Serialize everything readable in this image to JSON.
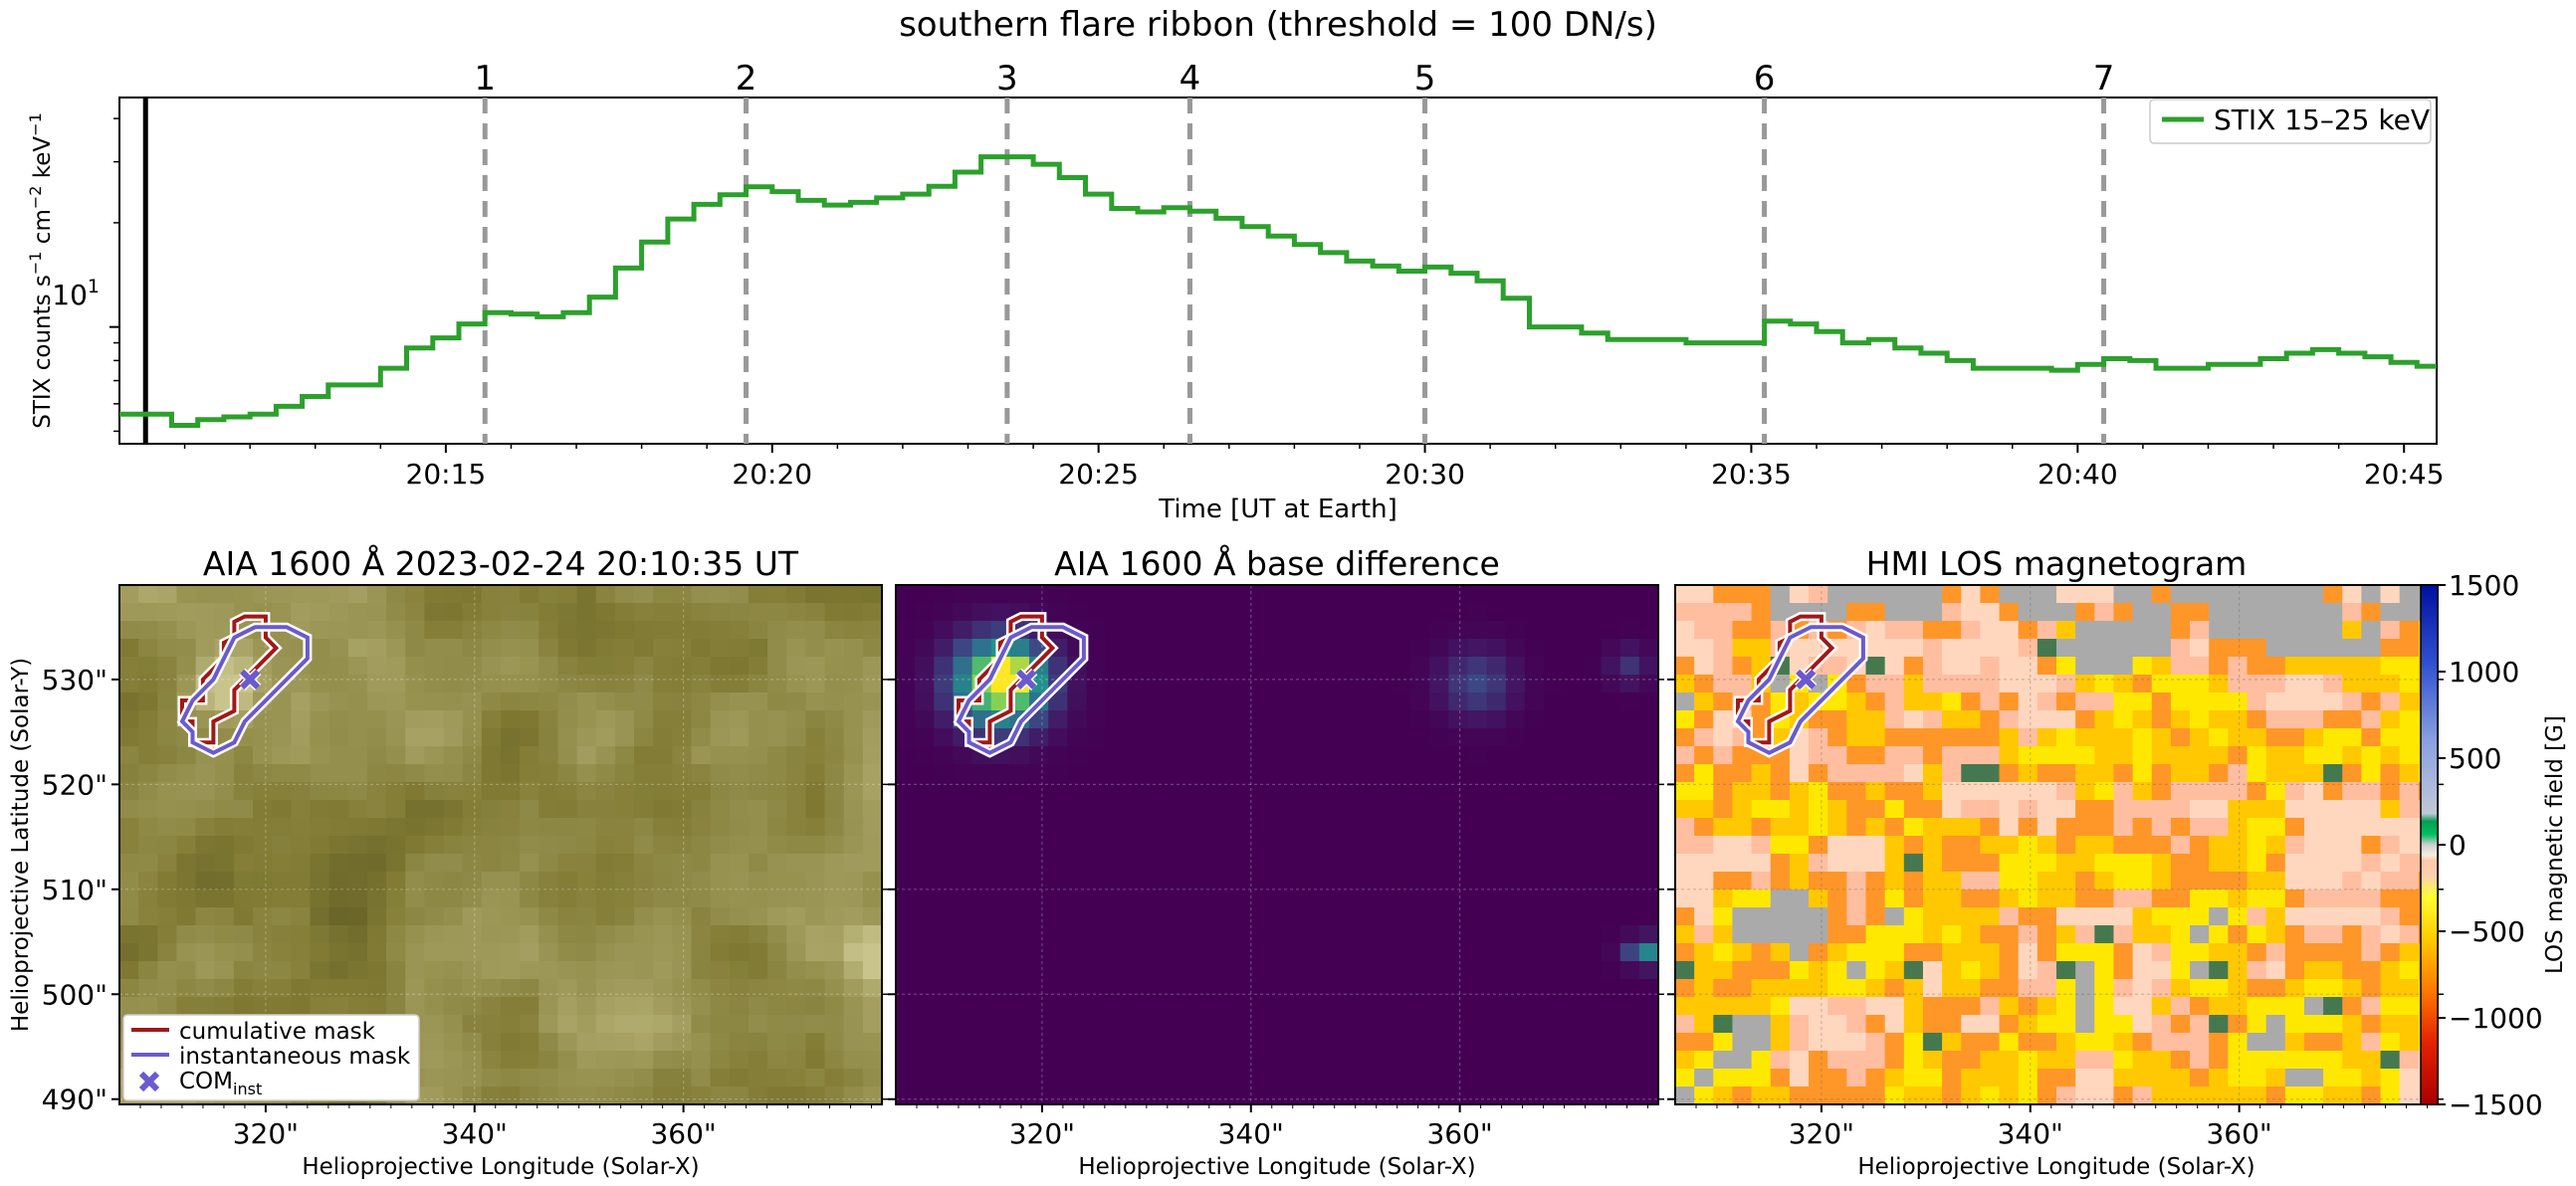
{
  "figure_title": "southern flare ribbon (threshold = 100 DN/s)",
  "colors": {
    "stix_line": "#2ca02c",
    "event_lines": "#999999",
    "start_line": "#000000",
    "cumulative_mask": "#a01818",
    "instantaneous_mask": "#6a5acd",
    "com_marker": "#6a5acd"
  },
  "chart_data": [
    {
      "type": "line",
      "panel": "timeseries",
      "drawstyle": "steps-post",
      "yscale": "log",
      "xlabel": "Time [UT at Earth]",
      "ylabel": "STIX counts s",
      "ylabel_sup1": "−1",
      "ylabel_mid": " cm",
      "ylabel_sup2": "−2",
      "ylabel_mid2": " keV",
      "ylabel_sup3": "−1",
      "xlim_minutes": [
        10.0,
        45.5
      ],
      "ylim": [
        4.6,
        46
      ],
      "x_tick_labels": [
        "20:15",
        "20:20",
        "20:25",
        "20:30",
        "20:35",
        "20:40",
        "20:45"
      ],
      "x_tick_minutes": [
        15,
        20,
        25,
        30,
        35,
        40,
        45
      ],
      "y_tick_base": "10",
      "y_tick_exp": "1",
      "y_tick_value": 10,
      "legend": [
        "STIX 15–25 keV"
      ],
      "legend_position": "upper-right",
      "start_marker_minute": 10.4,
      "event_markers": [
        {
          "label": "1",
          "minute": 15.6
        },
        {
          "label": "2",
          "minute": 19.6
        },
        {
          "label": "3",
          "minute": 23.6
        },
        {
          "label": "4",
          "minute": 26.4
        },
        {
          "label": "5",
          "minute": 30.0
        },
        {
          "label": "6",
          "minute": 35.2
        },
        {
          "label": "7",
          "minute": 40.4
        }
      ],
      "series": [
        {
          "name": "STIX 15–25 keV",
          "x_minutes": [
            10.0,
            10.4,
            10.8,
            11.2,
            11.6,
            12.0,
            12.4,
            12.8,
            13.2,
            13.6,
            14.0,
            14.4,
            14.8,
            15.2,
            15.6,
            16.0,
            16.4,
            16.8,
            17.2,
            17.6,
            18.0,
            18.4,
            18.8,
            19.2,
            19.6,
            20.0,
            20.4,
            20.8,
            21.2,
            21.6,
            22.0,
            22.4,
            22.8,
            23.2,
            23.6,
            24.0,
            24.4,
            24.8,
            25.2,
            25.6,
            26.0,
            26.4,
            26.8,
            27.2,
            27.6,
            28.0,
            28.4,
            28.8,
            29.2,
            29.6,
            30.0,
            30.4,
            30.8,
            31.2,
            31.6,
            32.0,
            32.4,
            32.8,
            33.2,
            33.6,
            34.0,
            34.4,
            34.8,
            35.2,
            35.6,
            36.0,
            36.4,
            36.8,
            37.2,
            37.6,
            38.0,
            38.4,
            38.8,
            39.2,
            39.6,
            40.0,
            40.4,
            40.8,
            41.2,
            41.6,
            42.0,
            42.4,
            42.8,
            43.2,
            43.6,
            44.0,
            44.4,
            44.8,
            45.2
          ],
          "values": [
            5.6,
            5.6,
            5.2,
            5.4,
            5.5,
            5.6,
            5.9,
            6.3,
            6.8,
            6.8,
            7.6,
            8.7,
            9.3,
            10.2,
            11.0,
            10.9,
            10.7,
            11.0,
            12.2,
            14.8,
            17.6,
            20.5,
            22.6,
            24.1,
            25.4,
            24.6,
            23.2,
            22.5,
            22.9,
            23.6,
            24.2,
            25.5,
            28.0,
            31.0,
            31.0,
            29.5,
            27.0,
            24.2,
            22.0,
            21.5,
            22.1,
            21.6,
            20.6,
            19.5,
            18.3,
            17.3,
            16.4,
            15.5,
            15.0,
            14.5,
            14.9,
            14.3,
            13.6,
            12.1,
            10.0,
            10.0,
            9.6,
            9.2,
            9.2,
            9.2,
            9.0,
            9.0,
            9.0,
            10.4,
            10.2,
            9.7,
            9.0,
            9.2,
            8.7,
            8.4,
            8.0,
            7.6,
            7.6,
            7.6,
            7.5,
            7.8,
            8.1,
            8.0,
            7.6,
            7.6,
            7.8,
            7.8,
            8.1,
            8.4,
            8.6,
            8.4,
            8.2,
            7.9,
            7.7
          ]
        }
      ]
    },
    {
      "type": "heatmap",
      "panel": "aia",
      "title": "AIA 1600 Å 2023-02-24 20:10:35 UT",
      "xlabel": "Helioprojective Longitude (Solar-X)",
      "ylabel": "Helioprojective Latitude (Solar-Y)",
      "x_tick_labels": [
        "320\"",
        "340\"",
        "360\""
      ],
      "x_tick_values": [
        320,
        340,
        360
      ],
      "y_tick_labels": [
        "490\"",
        "500\"",
        "510\"",
        "520\"",
        "530\""
      ],
      "y_tick_values": [
        490,
        500,
        510,
        520,
        530
      ],
      "xlim": [
        306,
        379
      ],
      "ylim": [
        489.5,
        539
      ],
      "legend": [
        "cumulative mask",
        "instantaneous mask"
      ],
      "legend_com_base": "COM",
      "legend_com_sub": "inst",
      "legend_position": "lower-left",
      "colormap": "sdoaia1600"
    },
    {
      "type": "heatmap",
      "panel": "diff",
      "title": "AIA 1600 Å base difference",
      "xlabel": "Helioprojective Longitude (Solar-X)",
      "x_tick_labels": [
        "320\"",
        "340\"",
        "360\""
      ],
      "x_tick_values": [
        320,
        340,
        360
      ],
      "xlim": [
        306,
        379
      ],
      "ylim": [
        489.5,
        539
      ],
      "colormap": "viridis"
    },
    {
      "type": "heatmap",
      "panel": "hmi",
      "title": "HMI LOS magnetogram",
      "xlabel": "Helioprojective Longitude (Solar-X)",
      "x_tick_labels": [
        "320\"",
        "340\"",
        "360\""
      ],
      "x_tick_values": [
        320,
        340,
        360
      ],
      "xlim": [
        306,
        379
      ],
      "ylim": [
        489.5,
        539
      ],
      "colorbar_label": "LOS magnetic field [G]",
      "colorbar_range": [
        -1500,
        1500
      ],
      "colorbar_ticks": [
        "1500",
        "1000",
        "500",
        "0",
        "−500",
        "−1000",
        "−1500"
      ],
      "colorbar_tick_values": [
        1500,
        1000,
        500,
        0,
        -500,
        -1000,
        -1500
      ]
    }
  ]
}
